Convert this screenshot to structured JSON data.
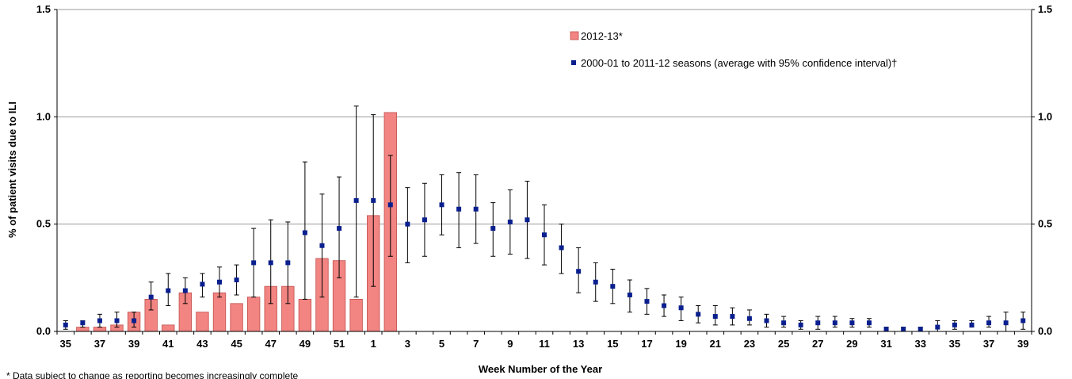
{
  "chart_data": {
    "type": "bar",
    "title": "",
    "xlabel": "Week Number of the Year",
    "ylabel": "% of patient visits due to ILI",
    "ylim": [
      0,
      1.5
    ],
    "y_ticks": [
      "0.0",
      "0.5",
      "1.0",
      "1.5"
    ],
    "y_right_ticks": [
      "0.0",
      "0.5",
      "1.0",
      "1.5"
    ],
    "grid": true,
    "legend_position": "top-center",
    "footnote": "* Data subject to change as reporting becomes increasingly  complete",
    "categories": [
      "35",
      "36",
      "37",
      "38",
      "39",
      "40",
      "41",
      "42",
      "43",
      "44",
      "45",
      "46",
      "47",
      "48",
      "49",
      "50",
      "51",
      "52",
      "1",
      "2",
      "3",
      "4",
      "5",
      "6",
      "7",
      "8",
      "9",
      "10",
      "11",
      "12",
      "13",
      "14",
      "15",
      "16",
      "17",
      "18",
      "19",
      "20",
      "21",
      "22",
      "23",
      "24",
      "25",
      "26",
      "27",
      "28",
      "29",
      "30",
      "31",
      "32",
      "33",
      "34",
      "35",
      "36",
      "37",
      "38",
      "39"
    ],
    "x_tick_labels": [
      "35",
      "",
      "37",
      "",
      "39",
      "",
      "41",
      "",
      "43",
      "",
      "45",
      "",
      "47",
      "",
      "49",
      "",
      "51",
      "",
      "1",
      "",
      "3",
      "",
      "5",
      "",
      "7",
      "",
      "9",
      "",
      "11",
      "",
      "13",
      "",
      "15",
      "",
      "17",
      "",
      "19",
      "",
      "21",
      "",
      "23",
      "",
      "25",
      "",
      "27",
      "",
      "29",
      "",
      "31",
      "",
      "33",
      "",
      "35",
      "",
      "37",
      "",
      "39"
    ],
    "series": [
      {
        "name": "2012-13*",
        "type": "bar",
        "color": "#f28482",
        "values": [
          0,
          0.02,
          0.02,
          0.03,
          0.09,
          0.15,
          0.03,
          0.18,
          0.09,
          0.18,
          0.13,
          0.16,
          0.21,
          0.21,
          0.15,
          0.34,
          0.33,
          0.15,
          0.54,
          1.02,
          null,
          null,
          null,
          null,
          null,
          null,
          null,
          null,
          null,
          null,
          null,
          null,
          null,
          null,
          null,
          null,
          null,
          null,
          null,
          null,
          null,
          null,
          null,
          null,
          null,
          null,
          null,
          null,
          null,
          null,
          null,
          null,
          null,
          null,
          null,
          null,
          null
        ]
      },
      {
        "name": "2000-01 to 2011-12 seasons (average with 95% confidence interval)†",
        "type": "errorbar",
        "color": "#0a1f8f",
        "values": [
          0.03,
          0.04,
          0.05,
          0.05,
          0.05,
          0.16,
          0.19,
          0.19,
          0.22,
          0.23,
          0.24,
          0.32,
          0.32,
          0.32,
          0.46,
          0.4,
          0.48,
          0.61,
          0.61,
          0.59,
          0.5,
          0.52,
          0.59,
          0.57,
          0.57,
          0.48,
          0.51,
          0.52,
          0.45,
          0.39,
          0.28,
          0.23,
          0.21,
          0.17,
          0.14,
          0.12,
          0.11,
          0.08,
          0.07,
          0.07,
          0.06,
          0.05,
          0.04,
          0.03,
          0.04,
          0.04,
          0.04,
          0.04,
          0.01,
          0.01,
          0.01,
          0.02,
          0.03,
          0.03,
          0.04,
          0.04,
          0.05
        ],
        "lower": [
          0.01,
          0.02,
          0.02,
          0.02,
          0.02,
          0.1,
          0.12,
          0.13,
          0.16,
          0.16,
          0.17,
          0.16,
          0.13,
          0.13,
          0.15,
          0.16,
          0.25,
          0.16,
          0.21,
          0.35,
          0.32,
          0.35,
          0.45,
          0.39,
          0.41,
          0.35,
          0.36,
          0.34,
          0.31,
          0.27,
          0.18,
          0.14,
          0.13,
          0.09,
          0.08,
          0.07,
          0.05,
          0.04,
          0.03,
          0.03,
          0.03,
          0.02,
          0.02,
          0.01,
          0.01,
          0.02,
          0.02,
          0.02,
          0.0,
          0.0,
          0.0,
          0.0,
          0.01,
          0.02,
          0.02,
          0.0,
          0.01
        ],
        "upper": [
          0.05,
          0.05,
          0.08,
          0.09,
          0.09,
          0.23,
          0.27,
          0.25,
          0.27,
          0.3,
          0.31,
          0.48,
          0.52,
          0.51,
          0.79,
          0.64,
          0.72,
          1.05,
          1.01,
          0.82,
          0.67,
          0.69,
          0.73,
          0.74,
          0.73,
          0.6,
          0.66,
          0.7,
          0.59,
          0.5,
          0.39,
          0.32,
          0.29,
          0.24,
          0.2,
          0.17,
          0.16,
          0.12,
          0.12,
          0.11,
          0.1,
          0.08,
          0.07,
          0.05,
          0.07,
          0.07,
          0.06,
          0.06,
          0.02,
          0.02,
          0.02,
          0.05,
          0.05,
          0.05,
          0.07,
          0.09,
          0.09
        ]
      }
    ]
  }
}
